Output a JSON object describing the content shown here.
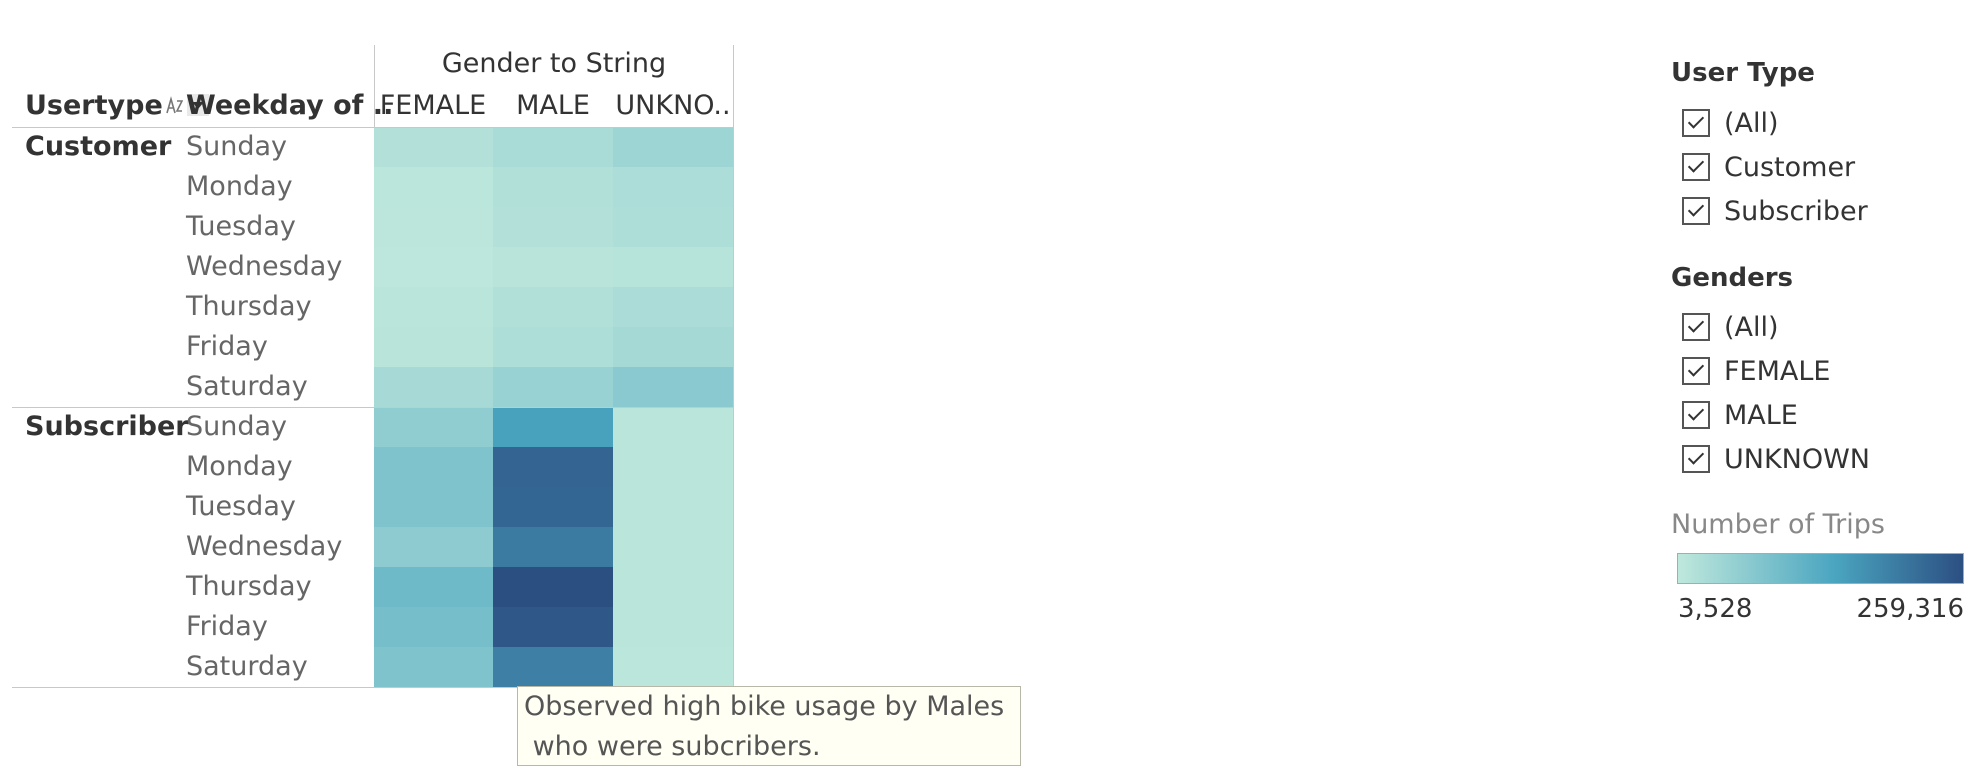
{
  "chart_data": {
    "type": "heatmap",
    "column_group_title": "Gender to String",
    "columns": [
      "FEMALE",
      "MALE",
      "UNKNO.."
    ],
    "row_headers": {
      "usertype": "Usertype",
      "weekday": "Weekday of .."
    },
    "groups": [
      {
        "name": "Customer",
        "rows": [
          {
            "day": "Sunday",
            "values": [
              18000,
              30000,
              45000
            ]
          },
          {
            "day": "Monday",
            "values": [
              8000,
              20000,
              26000
            ]
          },
          {
            "day": "Tuesday",
            "values": [
              7000,
              18000,
              24000
            ]
          },
          {
            "day": "Wednesday",
            "values": [
              6000,
              12000,
              14000
            ]
          },
          {
            "day": "Thursday",
            "values": [
              9000,
              20000,
              28000
            ]
          },
          {
            "day": "Friday",
            "values": [
              12000,
              24000,
              36000
            ]
          },
          {
            "day": "Saturday",
            "values": [
              32000,
              50000,
              68000
            ]
          }
        ]
      },
      {
        "name": "Subscriber",
        "rows": [
          {
            "day": "Sunday",
            "values": [
              60000,
              150000,
              9000
            ]
          },
          {
            "day": "Monday",
            "values": [
              80000,
              230000,
              9500
            ]
          },
          {
            "day": "Tuesday",
            "values": [
              80000,
              228000,
              9500
            ]
          },
          {
            "day": "Wednesday",
            "values": [
              64000,
              200000,
              9000
            ]
          },
          {
            "day": "Thursday",
            "values": [
              100000,
              259316,
              9500
            ]
          },
          {
            "day": "Friday",
            "values": [
              92000,
              248000,
              9500
            ]
          },
          {
            "day": "Saturday",
            "values": [
              80000,
              195000,
              8000
            ]
          }
        ]
      }
    ],
    "color_scale": {
      "min": 3528,
      "max": 259316,
      "min_color": "#bfe8dc",
      "mid_color": "#4aa5c0",
      "max_color": "#2c4f82"
    },
    "legend": {
      "title": "Number of Trips",
      "min_label": "3,528",
      "max_label": "259,316",
      "position": "right"
    }
  },
  "tooltip": {
    "text": "Observed high bike usage by Males\n who were subcribers."
  },
  "filters": [
    {
      "title": "User Type",
      "items": [
        "(All)",
        "Customer",
        "Subscriber"
      ]
    },
    {
      "title": "Genders",
      "items": [
        "(All)",
        "FEMALE",
        "MALE",
        "UNKNOWN"
      ]
    }
  ],
  "icons": {
    "sort": "sort-icon",
    "dropdown": "chevron-down-icon",
    "checkbox": "checkbox-checked-icon"
  }
}
